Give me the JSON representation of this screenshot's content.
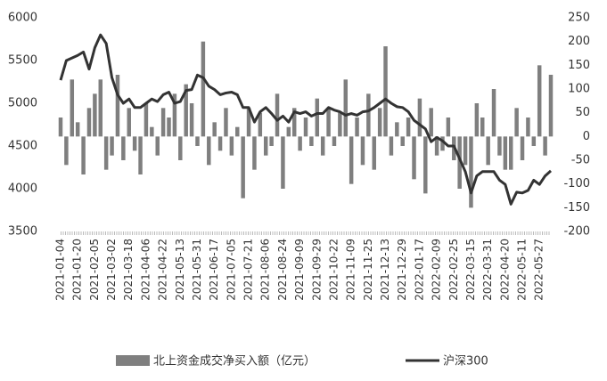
{
  "chart_data": {
    "type": "bar-line",
    "categories": [
      "2021-01-04",
      null,
      null,
      "2021-01-20",
      null,
      null,
      "2021-02-05",
      null,
      null,
      "2021-03-02",
      null,
      null,
      "2021-03-18",
      null,
      null,
      "2021-04-06",
      null,
      null,
      "2021-04-22",
      null,
      null,
      "2021-05-13",
      null,
      null,
      "2021-05-31",
      null,
      null,
      "2021-06-17",
      null,
      null,
      "2021-07-05",
      null,
      null,
      "2021-07-21",
      null,
      null,
      "2021-08-06",
      null,
      null,
      "2021-08-24",
      null,
      null,
      "2021-09-09",
      null,
      null,
      "2021-09-29",
      null,
      null,
      "2021-10-22",
      null,
      null,
      "2021-11-09",
      null,
      null,
      "2021-11-25",
      null,
      null,
      "2021-12-13",
      null,
      null,
      "2021-12-29",
      null,
      null,
      "2022-01-17",
      null,
      null,
      "2022-02-09",
      null,
      null,
      "2022-02-25",
      null,
      null,
      "2022-03-15",
      null,
      null,
      "2022-03-31",
      null,
      null,
      "2022-04-20",
      null,
      null,
      "2022-05-11",
      null,
      null,
      "2022-05-27",
      null,
      null
    ],
    "series": [
      {
        "name": "北上资金成交净买入额（亿元）",
        "type": "bar",
        "axis": "y2",
        "color": "#7f7f7f",
        "values": [
          40,
          -60,
          120,
          30,
          -80,
          60,
          90,
          120,
          -70,
          -40,
          130,
          -50,
          60,
          -30,
          -80,
          70,
          20,
          -40,
          60,
          40,
          90,
          -50,
          110,
          70,
          -20,
          200,
          -60,
          30,
          -30,
          60,
          -40,
          20,
          -130,
          60,
          -70,
          50,
          -40,
          -20,
          90,
          -110,
          20,
          60,
          -30,
          40,
          -20,
          80,
          -40,
          60,
          -20,
          50,
          120,
          -100,
          40,
          -60,
          90,
          -70,
          60,
          190,
          -40,
          30,
          -20,
          40,
          -90,
          80,
          -120,
          60,
          -40,
          -30,
          40,
          -50,
          -110,
          -60,
          -150,
          70,
          40,
          -60,
          100,
          -40,
          -70,
          -70,
          60,
          -50,
          40,
          -20,
          150,
          -40,
          130
        ]
      },
      {
        "name": "沪深300",
        "type": "line",
        "color": "#333333",
        "values": [
          5270,
          5500,
          5530,
          5560,
          5600,
          5400,
          5650,
          5800,
          5700,
          5300,
          5100,
          5000,
          5050,
          4950,
          4950,
          5000,
          5050,
          5020,
          5100,
          5130,
          5000,
          5020,
          5150,
          5160,
          5330,
          5300,
          5200,
          5160,
          5100,
          5120,
          5130,
          5100,
          4950,
          4950,
          4780,
          4900,
          4950,
          4880,
          4800,
          4850,
          4780,
          4900,
          4880,
          4900,
          4850,
          4880,
          4880,
          4950,
          4920,
          4900,
          4860,
          4880,
          4860,
          4900,
          4910,
          4950,
          5000,
          5050,
          5000,
          4960,
          4950,
          4900,
          4800,
          4750,
          4700,
          4550,
          4600,
          4560,
          4500,
          4500,
          4350,
          4200,
          3950,
          4150,
          4200,
          4200,
          4200,
          4100,
          4050,
          3820,
          3960,
          3950,
          3980,
          4100,
          4050,
          4150,
          4210
        ]
      }
    ],
    "ylim": [
      3500,
      6000
    ],
    "yticks": [
      3500,
      4000,
      4500,
      5000,
      5500,
      6000
    ],
    "y2lim": [
      -200,
      250
    ],
    "y2ticks": [
      -200,
      -150,
      -100,
      -50,
      0,
      50,
      100,
      150,
      200,
      250
    ]
  }
}
